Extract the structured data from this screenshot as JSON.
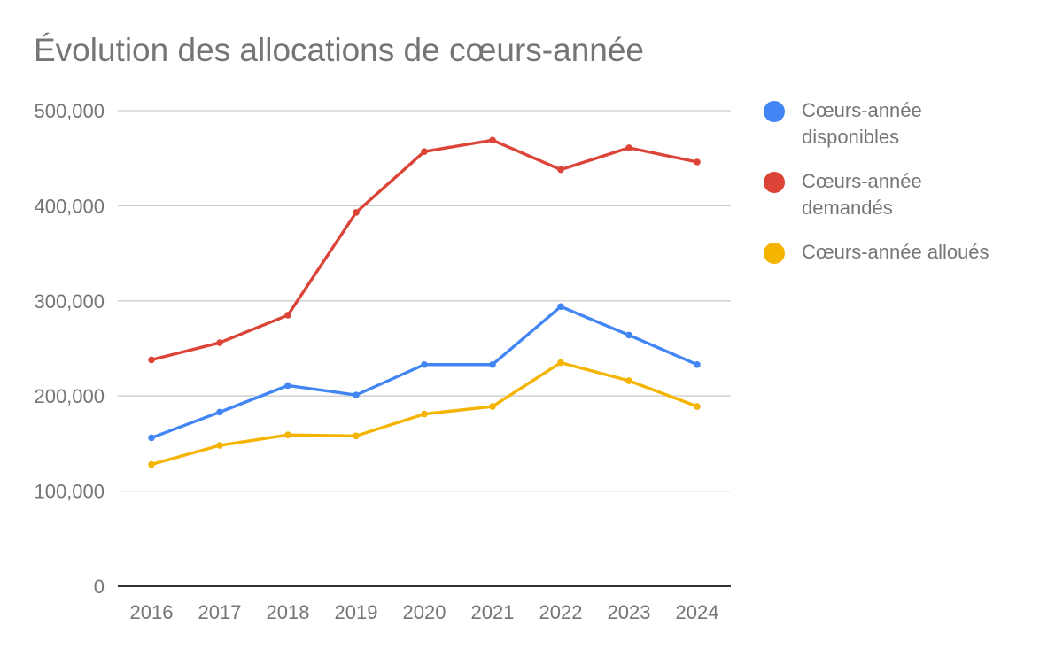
{
  "chart_data": {
    "type": "line",
    "title": "Évolution des allocations de cœurs-année",
    "xlabel": "",
    "ylabel": "",
    "x": [
      "2016",
      "2017",
      "2018",
      "2019",
      "2020",
      "2021",
      "2022",
      "2023",
      "2024"
    ],
    "ylim": [
      0,
      500000
    ],
    "yticks": [
      0,
      100000,
      200000,
      300000,
      400000,
      500000
    ],
    "ytick_labels": [
      "0",
      "100,000",
      "200,000",
      "300,000",
      "400,000",
      "500,000"
    ],
    "grid": true,
    "legend_position": "right",
    "series": [
      {
        "name": "Cœurs-année disponibles",
        "color": "#4285f4",
        "values": [
          156000,
          183000,
          211000,
          201000,
          233000,
          233000,
          294000,
          264000,
          233000
        ]
      },
      {
        "name": "Cœurs-année demandés",
        "color": "#db4437",
        "values": [
          238000,
          256000,
          285000,
          393000,
          457000,
          469000,
          438000,
          461000,
          446000
        ]
      },
      {
        "name": "Cœurs-année alloués",
        "color": "#f4b400",
        "values": [
          128000,
          148000,
          159000,
          158000,
          181000,
          189000,
          235000,
          216000,
          189000
        ]
      }
    ]
  }
}
